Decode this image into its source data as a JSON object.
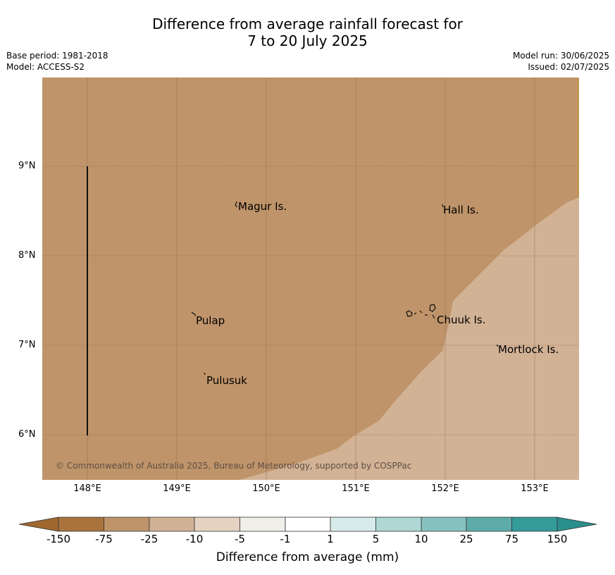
{
  "title": {
    "line1": "Difference from average rainfall forecast for",
    "line2": "7 to 20 July 2025"
  },
  "meta": {
    "base_period": "Base period: 1981-2018",
    "model": "Model: ACCESS-S2",
    "model_run": "Model run: 30/06/2025",
    "issued": "Issued: 02/07/2025"
  },
  "map": {
    "y_ticks": [
      "9°N",
      "8°N",
      "7°N",
      "6°N"
    ],
    "x_ticks": [
      "148°E",
      "149°E",
      "150°E",
      "151°E",
      "152°E",
      "153°E"
    ],
    "places": [
      "Magur Is.",
      "Hall Is.",
      "Pulap",
      "Chuuk Is.",
      "Mortlock Is.",
      "Pulusuk"
    ],
    "copyright": "© Commonwealth of Australia 2025, Bureau of Meteorology, supported by COSPPac",
    "region_colors": {
      "drier": "#BF946A",
      "slightly_drier": "#D2B295",
      "edge": "#C09050"
    }
  },
  "colorbar": {
    "ticks": [
      "-150",
      "-75",
      "-25",
      "-10",
      "-5",
      "-1",
      "1",
      "5",
      "10",
      "25",
      "75",
      "150"
    ],
    "colors": [
      "#AA733D",
      "#BF946A",
      "#D2B295",
      "#E5D3C2",
      "#F1EFEA",
      "#FFFFFF",
      "#D7EBEA",
      "#AFD7D5",
      "#86C1BF",
      "#5DACAA",
      "#349B99"
    ],
    "under_color": "#A0672F",
    "over_color": "#2A8F8D",
    "label": "Difference from average (mm)"
  }
}
